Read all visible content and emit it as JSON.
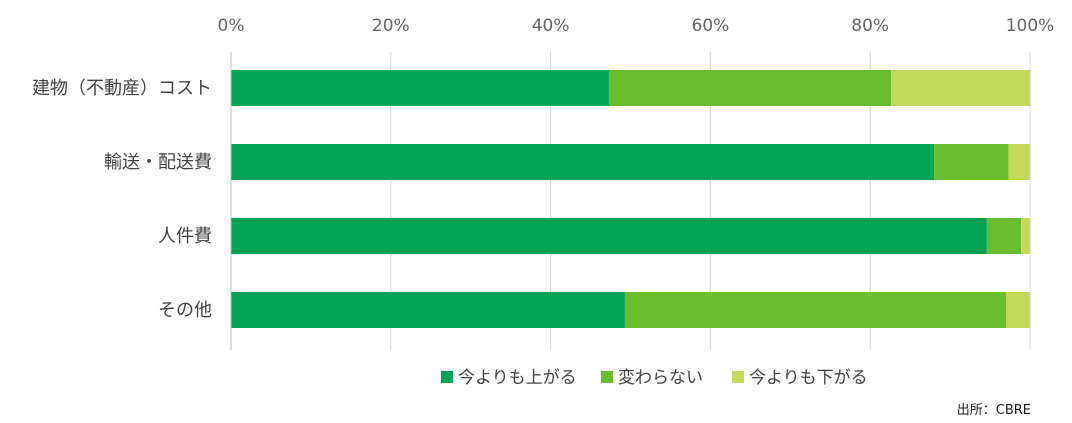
{
  "chart_data": {
    "type": "bar",
    "orientation": "horizontal",
    "stacked": true,
    "categories": [
      "建物（不動産）コスト",
      "輸送・配送費",
      "人件費",
      "その他"
    ],
    "series": [
      {
        "name": "今よりも上がる",
        "color": "#00a454",
        "values": [
          47.3,
          88.0,
          94.6,
          49.3
        ]
      },
      {
        "name": "変わらない",
        "color": "#6abd2c",
        "values": [
          35.3,
          9.3,
          4.3,
          47.7
        ]
      },
      {
        "name": "今よりも下がる",
        "color": "#c2d95b",
        "values": [
          17.4,
          2.7,
          1.1,
          3.0
        ]
      }
    ],
    "xlim": [
      0,
      100
    ],
    "ticks": [
      "0%",
      "20%",
      "40%",
      "60%",
      "80%",
      "100%"
    ],
    "grid": true,
    "legend_position": "bottom"
  },
  "source": "出所：CBRE"
}
